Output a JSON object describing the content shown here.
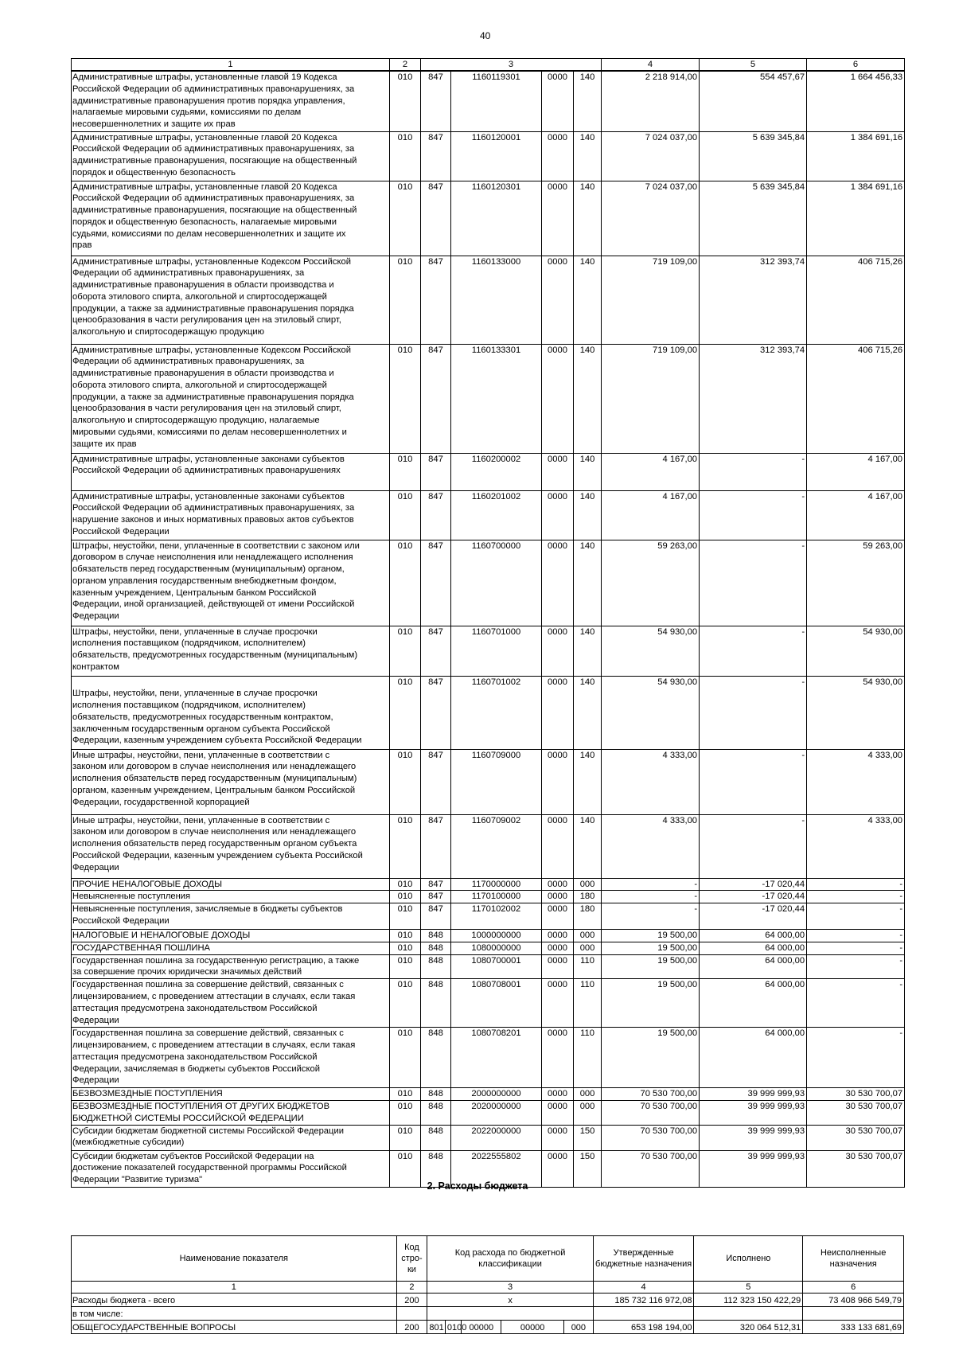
{
  "page_number": "40",
  "income_table": {
    "header": [
      "1",
      "2",
      "3",
      "4",
      "5",
      "6"
    ],
    "rows": [
      {
        "name": "Административные штрафы, установленные главой 19 Кодекса\nРоссийской Федерации об административных правонарушениях, за\nадминистративные правонарушения против порядка управления,\nналагаемые мировыми судьями, комиссиями по делам\nнесовершеннолетних и защите их прав",
        "line": "010",
        "admin": "847",
        "code": "1160119301",
        "sub": "0000",
        "kind": "140",
        "approved": "2 218 914,00",
        "executed": "554 457,67",
        "unexecuted": "1 664 456,33"
      },
      {
        "name": "Административные штрафы, установленные главой 20 Кодекса\nРоссийской Федерации об административных правонарушениях, за\nадминистративные правонарушения, посягающие на общественный\nпорядок и общественную безопасность",
        "line": "010",
        "admin": "847",
        "code": "1160120001",
        "sub": "0000",
        "kind": "140",
        "approved": "7 024 037,00",
        "executed": "5 639 345,84",
        "unexecuted": "1 384 691,16"
      },
      {
        "name": "Административные штрафы, установленные главой 20 Кодекса\nРоссийской Федерации об административных правонарушениях, за\nадминистративные правонарушения, посягающие на общественный\nпорядок и общественную безопасность, налагаемые мировыми\nсудьями, комиссиями по делам несовершеннолетних и защите их\nправ",
        "line": "010",
        "admin": "847",
        "code": "1160120301",
        "sub": "0000",
        "kind": "140",
        "approved": "7 024 037,00",
        "executed": "5 639 345,84",
        "unexecuted": "1 384 691,16"
      },
      {
        "name": "Административные штрафы, установленные Кодексом Российской\nФедерации об административных правонарушениях, за\nадминистративные правонарушения в области производства и\nоборота этилового спирта, алкогольной и спиртосодержащей\nпродукции, а также за административные правонарушения порядка\nценообразования в части регулирования цен на этиловый спирт,\nалкогольную и спиртосодержащую продукцию",
        "line": "010",
        "admin": "847",
        "code": "1160133000",
        "sub": "0000",
        "kind": "140",
        "approved": "719 109,00",
        "executed": "312 393,74",
        "unexecuted": "406 715,26"
      },
      {
        "name": "Административные штрафы, установленные Кодексом Российской\nФедерации об административных правонарушениях, за\nадминистративные правонарушения в области производства и\nоборота этилового спирта, алкогольной и спиртосодержащей\nпродукции, а также за административные правонарушения порядка\nценообразования в части регулирования цен на этиловый спирт,\nалкогольную и спиртосодержащую продукцию, налагаемые\nмировыми судьями, комиссиями по делам несовершеннолетних и\nзащите их прав",
        "line": "010",
        "admin": "847",
        "code": "1160133301",
        "sub": "0000",
        "kind": "140",
        "approved": "719 109,00",
        "executed": "312 393,74",
        "unexecuted": "406 715,26"
      },
      {
        "name": "Административные штрафы, установленные законами субъектов\nРоссийской Федерации об административных правонарушениях",
        "line": "010",
        "admin": "847",
        "code": "1160200002",
        "sub": "0000",
        "kind": "140",
        "approved": "4 167,00",
        "executed": "-",
        "unexecuted": "4 167,00"
      },
      {
        "name": "Административные штрафы, установленные законами субъектов\nРоссийской Федерации об административных правонарушениях, за\nнарушение законов и иных нормативных правовых актов субъектов\nРоссийской Федерации",
        "line": "010",
        "admin": "847",
        "code": "1160201002",
        "sub": "0000",
        "kind": "140",
        "approved": "4 167,00",
        "executed": "-",
        "unexecuted": "4 167,00"
      },
      {
        "name": "Штрафы, неустойки, пени, уплаченные в соответствии с законом или\nдоговором в случае неисполнения или ненадлежащего исполнения\nобязательств перед государственным (муниципальным) органом,\nорганом управления государственным внебюджетным фондом,\nказенным учреждением, Центральным банком Российской\nФедерации, иной организацией, действующей от имени Российской\nФедерации",
        "line": "010",
        "admin": "847",
        "code": "1160700000",
        "sub": "0000",
        "kind": "140",
        "approved": "59 263,00",
        "executed": "-",
        "unexecuted": "59 263,00"
      },
      {
        "name": "Штрафы, неустойки, пени, уплаченные в случае просрочки\nисполнения поставщиком (подрядчиком, исполнителем)\nобязательств, предусмотренных государственным (муниципальным)\nконтрактом",
        "line": "010",
        "admin": "847",
        "code": "1160701000",
        "sub": "0000",
        "kind": "140",
        "approved": "54 930,00",
        "executed": "-",
        "unexecuted": "54 930,00"
      },
      {
        "name": "\nШтрафы, неустойки, пени, уплаченные в случае просрочки\nисполнения поставщиком (подрядчиком, исполнителем)\nобязательств, предусмотренных государственным контрактом,\nзаключенным государственным органом субъекта Российской\nФедерации, казенным учреждением субъекта Российской Федерации",
        "line": "010",
        "admin": "847",
        "code": "1160701002",
        "sub": "0000",
        "kind": "140",
        "approved": "54 930,00",
        "executed": "-",
        "unexecuted": "54 930,00"
      },
      {
        "name": "Иные штрафы, неустойки, пени, уплаченные в соответствии с\nзаконом или договором в случае неисполнения или ненадлежащего\nисполнения обязательств перед государственным (муниципальным)\nорганом, казенным учреждением, Центральным банком Российской\nФедерации, государственной корпорацией",
        "line": "010",
        "admin": "847",
        "code": "1160709000",
        "sub": "0000",
        "kind": "140",
        "approved": "4 333,00",
        "executed": "-",
        "unexecuted": "4 333,00"
      },
      {
        "name": "Иные штрафы, неустойки, пени, уплаченные в соответствии с\nзаконом или договором в случае неисполнения или ненадлежащего\nисполнения обязательств перед государственным органом субъекта\nРоссийской Федерации, казенным учреждением субъекта Российской\nФедерации",
        "line": "010",
        "admin": "847",
        "code": "1160709002",
        "sub": "0000",
        "kind": "140",
        "approved": "4 333,00",
        "executed": "-",
        "unexecuted": "4 333,00"
      },
      {
        "name": "ПРОЧИЕ НЕНАЛОГОВЫЕ ДОХОДЫ",
        "line": "010",
        "admin": "847",
        "code": "1170000000",
        "sub": "0000",
        "kind": "000",
        "approved": "-",
        "executed": "-17 020,44",
        "unexecuted": "-"
      },
      {
        "name": "Невыясненные поступления",
        "line": "010",
        "admin": "847",
        "code": "1170100000",
        "sub": "0000",
        "kind": "180",
        "approved": "-",
        "executed": "-17 020,44",
        "unexecuted": "-"
      },
      {
        "name": "Невыясненные поступления, зачисляемые в бюджеты субъектов\nРоссийской Федерации",
        "line": "010",
        "admin": "847",
        "code": "1170102002",
        "sub": "0000",
        "kind": "180",
        "approved": "-",
        "executed": "-17 020,44",
        "unexecuted": "-"
      },
      {
        "name": "НАЛОГОВЫЕ И НЕНАЛОГОВЫЕ ДОХОДЫ",
        "line": "010",
        "admin": "848",
        "code": "1000000000",
        "sub": "0000",
        "kind": "000",
        "approved": "19 500,00",
        "executed": "64 000,00",
        "unexecuted": "-"
      },
      {
        "name": "ГОСУДАРСТВЕННАЯ ПОШЛИНА",
        "line": "010",
        "admin": "848",
        "code": "1080000000",
        "sub": "0000",
        "kind": "000",
        "approved": "19 500,00",
        "executed": "64 000,00",
        "unexecuted": "-"
      },
      {
        "name": "Государственная пошлина за государственную регистрацию, а также\nза совершение прочих юридически значимых действий",
        "line": "010",
        "admin": "848",
        "code": "1080700001",
        "sub": "0000",
        "kind": "110",
        "approved": "19 500,00",
        "executed": "64 000,00",
        "unexecuted": "-"
      },
      {
        "name": "Государственная пошлина за совершение действий, связанных с\nлицензированием, с проведением аттестации в случаях, если такая\nаттестация предусмотрена законодательством Российской\nФедерации",
        "line": "010",
        "admin": "848",
        "code": "1080708001",
        "sub": "0000",
        "kind": "110",
        "approved": "19 500,00",
        "executed": "64 000,00",
        "unexecuted": "-"
      },
      {
        "name": "Государственная пошлина за совершение действий, связанных с\nлицензированием, с проведением аттестации в случаях, если такая\nаттестация предусмотрена законодательством Российской\nФедерации, зачисляемая в бюджеты субъектов Российской\nФедерации",
        "line": "010",
        "admin": "848",
        "code": "1080708201",
        "sub": "0000",
        "kind": "110",
        "approved": "19 500,00",
        "executed": "64 000,00",
        "unexecuted": "-"
      },
      {
        "name": "БЕЗВОЗМЕЗДНЫЕ ПОСТУПЛЕНИЯ",
        "line": "010",
        "admin": "848",
        "code": "2000000000",
        "sub": "0000",
        "kind": "000",
        "approved": "70 530 700,00",
        "executed": "39 999 999,93",
        "unexecuted": "30 530 700,07"
      },
      {
        "name": "БЕЗВОЗМЕЗДНЫЕ ПОСТУПЛЕНИЯ ОТ ДРУГИХ БЮДЖЕТОВ\nБЮДЖЕТНОЙ СИСТЕМЫ РОССИЙСКОЙ ФЕДЕРАЦИИ",
        "line": "010",
        "admin": "848",
        "code": "2020000000",
        "sub": "0000",
        "kind": "000",
        "approved": "70 530 700,00",
        "executed": "39 999 999,93",
        "unexecuted": "30 530 700,07"
      },
      {
        "name": "Субсидии бюджетам бюджетной системы Российской Федерации\n(межбюджетные субсидии)",
        "line": "010",
        "admin": "848",
        "code": "2022000000",
        "sub": "0000",
        "kind": "150",
        "approved": "70 530 700,00",
        "executed": "39 999 999,93",
        "unexecuted": "30 530 700,07"
      },
      {
        "name": "Субсидии бюджетам субъектов Российской Федерации на\nдостижение показателей государственной программы Российской\nФедерации \"Развитие туризма\"",
        "line": "010",
        "admin": "848",
        "code": "2022555802",
        "sub": "0000",
        "kind": "150",
        "approved": "70 530 700,00",
        "executed": "39 999 999,93",
        "unexecuted": "30 530 700,07"
      }
    ]
  },
  "expenses_section": {
    "title": "2. Расходы бюджета",
    "header": {
      "name": "Наименование показателя",
      "line": "Код стро-ки",
      "code": "Код расхода по бюджетной классификации",
      "approved": "Утвержденные бюджетные назначения",
      "executed": "Исполнено",
      "unexecuted": "Неисполненные назначения"
    },
    "numbers": [
      "1",
      "2",
      "3",
      "4",
      "5",
      "6"
    ],
    "rows": [
      {
        "name": "Расходы бюджета - всего",
        "line": "200",
        "code": "х",
        "approved": "185 732 116 972,08",
        "executed": "112 323 150 422,29",
        "unexecuted": "73 408 966 549,79"
      },
      {
        "name": "в том числе:",
        "line": "",
        "code": "",
        "approved": "",
        "executed": "",
        "unexecuted": ""
      },
      {
        "name": "ОБЩЕГОСУДАРСТВЕННЫЕ ВОПРОСЫ",
        "line": "200",
        "code_parts": [
          "801",
          "0100",
          "00000",
          "00000",
          "000"
        ],
        "approved": "653 198 194,00",
        "executed": "320 064 512,31",
        "unexecuted": "333 133 681,69"
      }
    ]
  }
}
